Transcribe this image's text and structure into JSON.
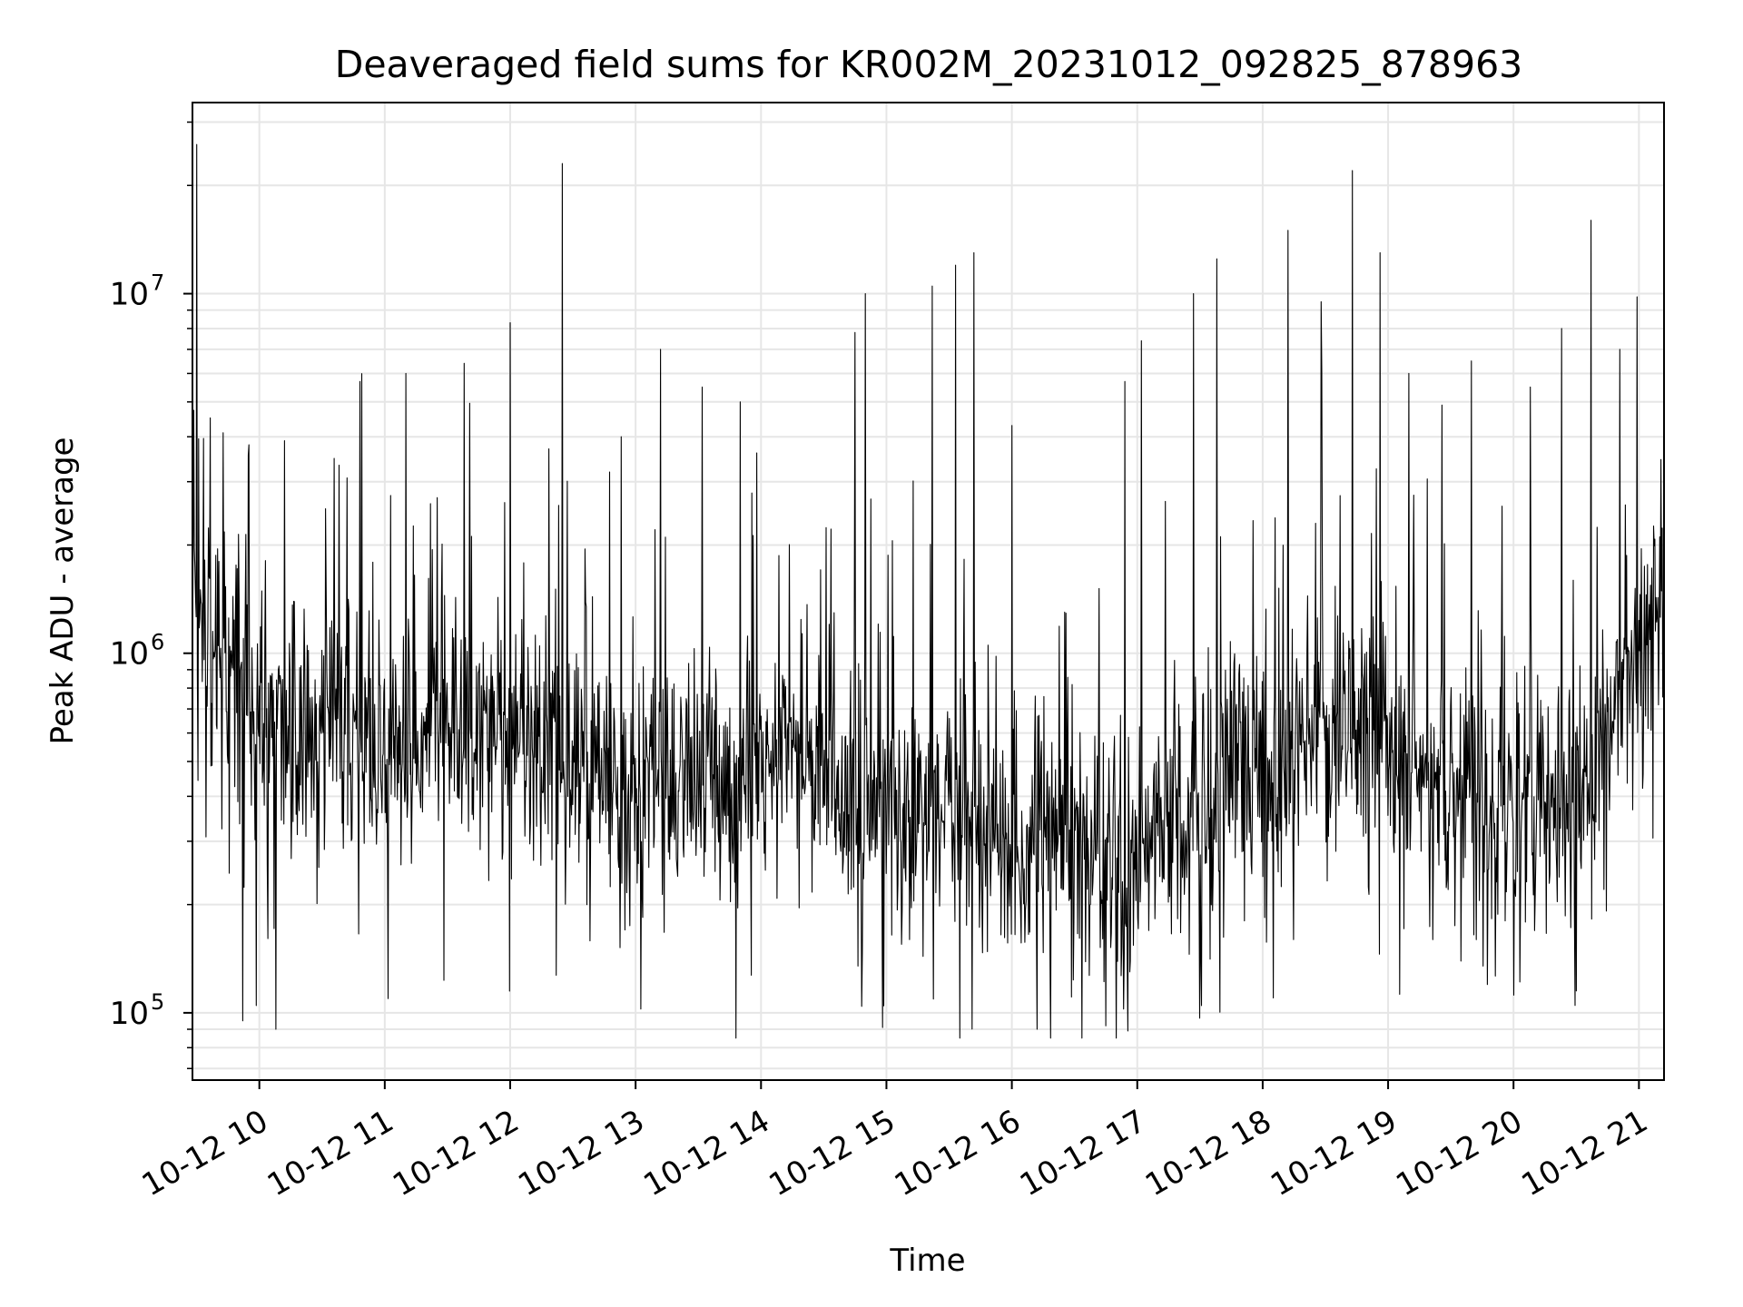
{
  "chart_data": {
    "type": "line",
    "title": "Deaveraged field sums for KR002M_20231012_092825_878963",
    "xlabel": "Time",
    "ylabel": "Peak ADU - average",
    "x_axis_type": "datetime",
    "xlim": [
      "2023-10-12 09:28",
      "2023-10-12 21:12"
    ],
    "x_ticks": [
      {
        "value": "2023-10-12 10:00",
        "label": "10-12 10"
      },
      {
        "value": "2023-10-12 11:00",
        "label": "10-12 11"
      },
      {
        "value": "2023-10-12 12:00",
        "label": "10-12 12"
      },
      {
        "value": "2023-10-12 13:00",
        "label": "10-12 13"
      },
      {
        "value": "2023-10-12 14:00",
        "label": "10-12 14"
      },
      {
        "value": "2023-10-12 15:00",
        "label": "10-12 15"
      },
      {
        "value": "2023-10-12 16:00",
        "label": "10-12 16"
      },
      {
        "value": "2023-10-12 17:00",
        "label": "10-12 17"
      },
      {
        "value": "2023-10-12 18:00",
        "label": "10-12 18"
      },
      {
        "value": "2023-10-12 19:00",
        "label": "10-12 19"
      },
      {
        "value": "2023-10-12 20:00",
        "label": "10-12 20"
      },
      {
        "value": "2023-10-12 21:00",
        "label": "10-12 21"
      }
    ],
    "y_scale": "log",
    "ylim": [
      65000,
      34000000
    ],
    "y_ticks": [
      {
        "value": 100000,
        "base": "10",
        "exp": "5"
      },
      {
        "value": 1000000,
        "base": "10",
        "exp": "6"
      },
      {
        "value": 10000000,
        "base": "10",
        "exp": "7"
      }
    ],
    "grid": true,
    "line_color": "#000000",
    "grid_color": "#e6e6e6",
    "envelope_note_free": true,
    "baseline_profile": [
      {
        "time": "2023-10-12 09:28",
        "value": 1400000
      },
      {
        "time": "2023-10-12 09:45",
        "value": 1000000
      },
      {
        "time": "2023-10-12 10:00",
        "value": 650000
      },
      {
        "time": "2023-10-12 11:00",
        "value": 600000
      },
      {
        "time": "2023-10-12 12:00",
        "value": 650000
      },
      {
        "time": "2023-10-12 13:00",
        "value": 420000
      },
      {
        "time": "2023-10-12 14:00",
        "value": 520000
      },
      {
        "time": "2023-10-12 15:00",
        "value": 380000
      },
      {
        "time": "2023-10-12 16:00",
        "value": 320000
      },
      {
        "time": "2023-10-12 16:45",
        "value": 270000
      },
      {
        "time": "2023-10-12 17:30",
        "value": 420000
      },
      {
        "time": "2023-10-12 18:00",
        "value": 500000
      },
      {
        "time": "2023-10-12 18:45",
        "value": 600000
      },
      {
        "time": "2023-10-12 19:30",
        "value": 420000
      },
      {
        "time": "2023-10-12 20:30",
        "value": 380000
      },
      {
        "time": "2023-10-12 21:00",
        "value": 1000000
      },
      {
        "time": "2023-10-12 21:12",
        "value": 1300000
      }
    ],
    "peaks": [
      {
        "time": "2023-10-12 09:30",
        "value": 26000000
      },
      {
        "time": "2023-10-12 09:55",
        "value": 3800000
      },
      {
        "time": "2023-10-12 10:12",
        "value": 3900000
      },
      {
        "time": "2023-10-12 10:48",
        "value": 5700000
      },
      {
        "time": "2023-10-12 11:10",
        "value": 6000000
      },
      {
        "time": "2023-10-12 11:38",
        "value": 6400000
      },
      {
        "time": "2023-10-12 12:00",
        "value": 8300000
      },
      {
        "time": "2023-10-12 12:25",
        "value": 23000000
      },
      {
        "time": "2023-10-12 12:53",
        "value": 4000000
      },
      {
        "time": "2023-10-12 13:12",
        "value": 7000000
      },
      {
        "time": "2023-10-12 13:32",
        "value": 5500000
      },
      {
        "time": "2023-10-12 13:50",
        "value": 5000000
      },
      {
        "time": "2023-10-12 14:45",
        "value": 7800000
      },
      {
        "time": "2023-10-12 14:50",
        "value": 10000000
      },
      {
        "time": "2023-10-12 15:22",
        "value": 10500000
      },
      {
        "time": "2023-10-12 15:33",
        "value": 12000000
      },
      {
        "time": "2023-10-12 15:42",
        "value": 13000000
      },
      {
        "time": "2023-10-12 16:00",
        "value": 4300000
      },
      {
        "time": "2023-10-12 16:54",
        "value": 5700000
      },
      {
        "time": "2023-10-12 17:02",
        "value": 7400000
      },
      {
        "time": "2023-10-12 17:27",
        "value": 10000000
      },
      {
        "time": "2023-10-12 17:38",
        "value": 12500000
      },
      {
        "time": "2023-10-12 18:12",
        "value": 15000000
      },
      {
        "time": "2023-10-12 18:28",
        "value": 9500000
      },
      {
        "time": "2023-10-12 18:43",
        "value": 22000000
      },
      {
        "time": "2023-10-12 18:56",
        "value": 13000000
      },
      {
        "time": "2023-10-12 19:10",
        "value": 6000000
      },
      {
        "time": "2023-10-12 19:40",
        "value": 6500000
      },
      {
        "time": "2023-10-12 20:08",
        "value": 5500000
      },
      {
        "time": "2023-10-12 20:23",
        "value": 8000000
      },
      {
        "time": "2023-10-12 20:37",
        "value": 16000000
      },
      {
        "time": "2023-10-12 20:51",
        "value": 7000000
      },
      {
        "time": "2023-10-12 20:59",
        "value": 9800000
      }
    ],
    "troughs": [
      {
        "time": "2023-10-12 09:52",
        "value": 95000
      },
      {
        "time": "2023-10-12 10:08",
        "value": 90000
      },
      {
        "time": "2023-10-12 14:58",
        "value": 91000
      },
      {
        "time": "2023-10-12 15:35",
        "value": 85000
      },
      {
        "time": "2023-10-12 16:12",
        "value": 90000
      },
      {
        "time": "2023-10-12 16:45",
        "value": 92000
      },
      {
        "time": "2023-10-12 18:05",
        "value": 110000
      },
      {
        "time": "2023-10-12 20:00",
        "value": 112000
      },
      {
        "time": "2023-10-12 20:30",
        "value": 115000
      }
    ]
  }
}
